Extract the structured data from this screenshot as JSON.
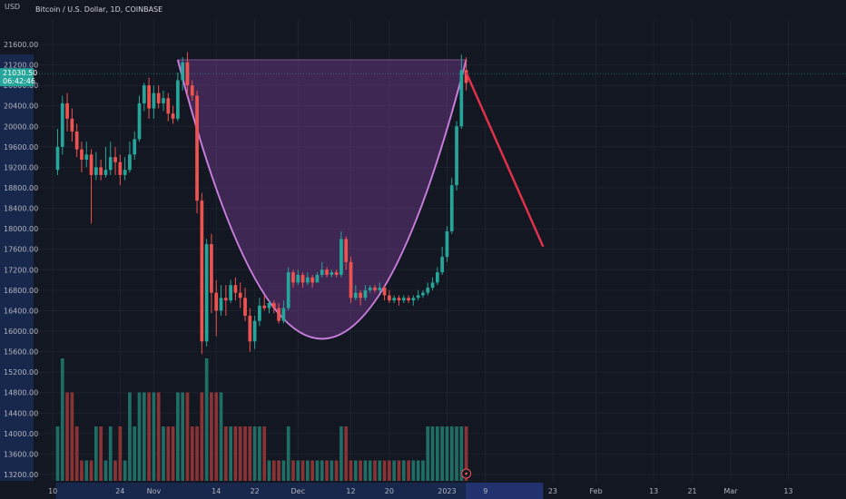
{
  "chart_data": {
    "type": "candlestick",
    "title": "Bitcoin / U.S. Dollar, 1D, COINBASE",
    "currency_label": "USD",
    "ylim": [
      13000,
      21900
    ],
    "y_ticks": [
      21600,
      21200,
      20800,
      20400,
      20000,
      19600,
      19200,
      18800,
      18400,
      18000,
      17600,
      17200,
      16800,
      16400,
      16000,
      15600,
      15200,
      14800,
      14400,
      14000,
      13600,
      13200
    ],
    "y_tick_labels": [
      "21600.00",
      "21200.00",
      "20800.00",
      "20400.00",
      "20000.00",
      "19600.00",
      "19200.00",
      "18800.00",
      "18400.00",
      "18000.00",
      "17600.00",
      "17200.00",
      "16800.00",
      "16400.00",
      "16000.00",
      "15600.00",
      "15200.00",
      "14800.00",
      "14400.00",
      "14000.00",
      "13600.00",
      "13200.00"
    ],
    "x_ticks": [
      {
        "label": "10",
        "day": 0
      },
      {
        "label": "24",
        "day": 14
      },
      {
        "label": "Nov",
        "day": 21
      },
      {
        "label": "14",
        "day": 34
      },
      {
        "label": "22",
        "day": 42
      },
      {
        "label": "Dec",
        "day": 51
      },
      {
        "label": "12",
        "day": 62
      },
      {
        "label": "20",
        "day": 70
      },
      {
        "label": "2023",
        "day": 82
      },
      {
        "label": "9",
        "day": 90
      },
      {
        "label": "23",
        "day": 104
      },
      {
        "label": "Feb",
        "day": 113
      },
      {
        "label": "13",
        "day": 125
      },
      {
        "label": "21",
        "day": 133
      },
      {
        "label": "Mar",
        "day": 141
      },
      {
        "label": "13",
        "day": 153
      }
    ],
    "x_range_days": [
      -4,
      165
    ],
    "current_price_label": "21030.50",
    "countdown_label": "06:42:46",
    "current_price": 21030,
    "candles": [
      [
        19150,
        19600,
        19950,
        19050,
        14
      ],
      [
        19600,
        20450,
        20600,
        19450,
        16
      ],
      [
        20450,
        20150,
        20650,
        19900,
        15
      ],
      [
        20150,
        19900,
        20350,
        19700,
        15
      ],
      [
        19900,
        19550,
        20050,
        19400,
        14
      ],
      [
        19550,
        19350,
        19700,
        19100,
        13
      ],
      [
        19350,
        19450,
        19700,
        19200,
        13
      ],
      [
        19450,
        19050,
        19550,
        18100,
        13
      ],
      [
        19050,
        19200,
        19500,
        18950,
        14
      ],
      [
        19200,
        19050,
        19350,
        18950,
        14
      ],
      [
        19050,
        19150,
        19600,
        19000,
        13
      ],
      [
        19150,
        19400,
        19700,
        19050,
        14
      ],
      [
        19400,
        19300,
        19600,
        19050,
        13
      ],
      [
        19300,
        19050,
        19450,
        18850,
        14
      ],
      [
        19050,
        19150,
        19400,
        18950,
        13
      ],
      [
        19150,
        19450,
        19700,
        19100,
        15
      ],
      [
        19450,
        19750,
        19900,
        19350,
        14
      ],
      [
        19750,
        20450,
        20600,
        19700,
        15
      ],
      [
        20450,
        20800,
        20850,
        20300,
        15
      ],
      [
        20800,
        20350,
        20950,
        20150,
        15
      ],
      [
        20350,
        20650,
        20800,
        20150,
        15
      ],
      [
        20650,
        20450,
        20800,
        20350,
        15
      ],
      [
        20450,
        20550,
        20700,
        20300,
        14
      ],
      [
        20550,
        20250,
        20650,
        20100,
        14
      ],
      [
        20250,
        20150,
        20400,
        20050,
        14
      ],
      [
        20150,
        20900,
        21050,
        20100,
        15
      ],
      [
        20900,
        21250,
        21350,
        20700,
        15
      ],
      [
        21250,
        20800,
        21450,
        20600,
        15
      ],
      [
        20800,
        20600,
        20900,
        20500,
        14
      ],
      [
        20600,
        18550,
        20700,
        18300,
        14
      ],
      [
        18550,
        15800,
        18700,
        15550,
        15
      ],
      [
        15800,
        17700,
        17800,
        15700,
        16
      ],
      [
        17700,
        16750,
        17900,
        16350,
        15
      ],
      [
        16750,
        16400,
        17000,
        15900,
        15
      ],
      [
        16400,
        16650,
        16900,
        16300,
        15
      ],
      [
        16650,
        16600,
        16900,
        16300,
        14
      ],
      [
        16600,
        16900,
        17000,
        16550,
        14
      ],
      [
        16900,
        16750,
        17050,
        16600,
        14
      ],
      [
        16750,
        16650,
        16950,
        16450,
        14
      ],
      [
        16650,
        16300,
        16850,
        16200,
        14
      ],
      [
        16300,
        15800,
        16450,
        15600,
        14
      ],
      [
        15800,
        16200,
        16300,
        15650,
        14
      ],
      [
        16200,
        16500,
        16650,
        16100,
        14
      ],
      [
        16500,
        16450,
        16700,
        16400,
        14
      ],
      [
        16450,
        16550,
        16600,
        16350,
        13
      ],
      [
        16550,
        16450,
        16600,
        16350,
        13
      ],
      [
        16450,
        16200,
        16550,
        16150,
        13
      ],
      [
        16200,
        16450,
        16600,
        16150,
        13
      ],
      [
        16450,
        17150,
        17250,
        16400,
        14
      ],
      [
        17150,
        16950,
        17200,
        16850,
        13
      ],
      [
        16950,
        17100,
        17200,
        16900,
        13
      ],
      [
        17100,
        16950,
        17150,
        16850,
        13
      ],
      [
        16950,
        17050,
        17150,
        16900,
        13
      ],
      [
        17050,
        16950,
        17100,
        16850,
        13
      ],
      [
        16950,
        17100,
        17150,
        16950,
        13
      ],
      [
        17100,
        17200,
        17350,
        17050,
        13
      ],
      [
        17200,
        17100,
        17250,
        17050,
        13
      ],
      [
        17100,
        17150,
        17200,
        17050,
        13
      ],
      [
        17150,
        17100,
        17200,
        17050,
        13
      ],
      [
        17100,
        17800,
        17950,
        17050,
        14
      ],
      [
        17800,
        17350,
        17850,
        17200,
        14
      ],
      [
        17350,
        16650,
        17450,
        16550,
        13
      ],
      [
        16650,
        16750,
        16900,
        16600,
        13
      ],
      [
        16750,
        16650,
        16800,
        16500,
        13
      ],
      [
        16650,
        16800,
        16900,
        16600,
        13
      ],
      [
        16800,
        16850,
        16900,
        16750,
        13
      ],
      [
        16850,
        16800,
        16900,
        16750,
        13
      ],
      [
        16800,
        16850,
        16950,
        16750,
        13
      ],
      [
        16850,
        16700,
        16900,
        16600,
        13
      ],
      [
        16700,
        16600,
        16800,
        16550,
        13
      ],
      [
        16600,
        16650,
        16700,
        16550,
        13
      ],
      [
        16650,
        16600,
        16700,
        16500,
        13
      ],
      [
        16600,
        16650,
        16700,
        16550,
        13
      ],
      [
        16650,
        16600,
        16700,
        16550,
        13
      ],
      [
        16600,
        16650,
        16700,
        16500,
        13
      ],
      [
        16650,
        16700,
        16800,
        16600,
        13
      ],
      [
        16700,
        16750,
        16800,
        16650,
        13
      ],
      [
        16750,
        16850,
        16950,
        16700,
        14
      ],
      [
        16850,
        16950,
        17050,
        16800,
        14
      ],
      [
        16950,
        17150,
        17250,
        16900,
        14
      ],
      [
        17150,
        17450,
        17650,
        17100,
        14
      ],
      [
        17450,
        17950,
        18050,
        17350,
        14
      ],
      [
        17950,
        18850,
        19000,
        17900,
        14
      ],
      [
        18850,
        20000,
        20100,
        18750,
        14
      ],
      [
        20000,
        21100,
        21400,
        19950,
        14
      ],
      [
        21100,
        20850,
        21350,
        20700,
        14
      ]
    ],
    "annotations": {
      "cup_top_price": 21300,
      "cup_start_day": 26,
      "cup_end_day": 86,
      "cup_bottom_price": 15850,
      "cup_bottom_day": 56,
      "projection_start": {
        "day": 86,
        "price": 21050
      },
      "projection_end": {
        "day": 102,
        "price": 17650
      }
    },
    "colors": {
      "up": "#26a69a",
      "down": "#ef5350",
      "up_volume": "#1f6e66",
      "down_volume": "#8a3335",
      "cup_fill": "#8e44ad",
      "cup_line": "#c77ddb",
      "projection_line": "#e0314b",
      "price_badge": "#26a69a",
      "background": "#131722",
      "grid": "#1e222d",
      "axis_highlight": "#1e3570"
    },
    "grid": true
  }
}
